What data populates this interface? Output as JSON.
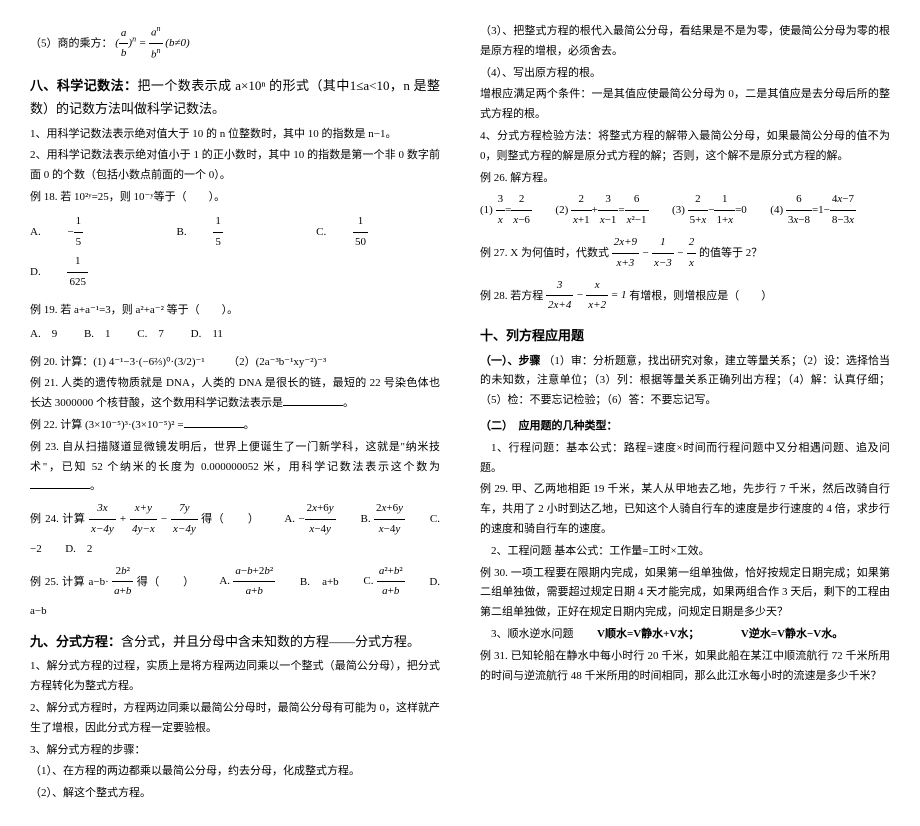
{
  "left": {
    "rule5": "（5）商的乘方：",
    "rule5_formula": "(a/b)ⁿ = aⁿ/bⁿ (b≠0)",
    "sec8_title": "八、科学记数法：",
    "sec8_intro": "把一个数表示成 a×10ⁿ 的形式（其中1≤a<10，n 是整数）的记数方法叫做科学记数法。",
    "sec8_p1": "1、用科学记数法表示绝对值大于 10 的 n 位整数时，其中 10 的指数是 n−1。",
    "sec8_p2": "2、用科学记数法表示绝对值小于 1 的正小数时，其中 10 的指数是第一个非 0 数字前面 0 的个数（包括小数点前面的一个 0）。",
    "ex18": "例 18. 若 10²ʸ=25，则 10⁻ʸ等于（　　）。",
    "ex18_A": "A.",
    "ex18_B": "B.",
    "ex18_C": "C.",
    "ex18_D": "D.",
    "ex19": "例 19. 若 a+a⁻¹=3，则 a²+a⁻² 等于（　　）。",
    "ex19_A": "A.　9",
    "ex19_B": "B.　1",
    "ex19_C": "C.　7",
    "ex19_D": "D.　11",
    "ex20": "例 20. 计算：(1) 4⁻¹−3·(−6⅔)⁰·(3/2)⁻¹",
    "ex20_2": "（2）(2a⁻³b⁻¹xy⁻²)⁻³",
    "ex21": "例 21. 人类的遗传物质就是 DNA，人类的 DNA 是很长的链，最短的 22 号染色体也长达 3000000 个核苷酸，这个数用科学记数法表示是",
    "ex22": "例 22. 计算 (3×10⁻⁵)³·(3×10⁻⁵)² =",
    "ex23": "例 23. 自从扫描隧道显微镜发明后，世界上便诞生了一门新学科，这就是\"纳米技术\"，已知 52 个纳米的长度为 0.000000052 米，用科学记数法表示这个数为",
    "ex24": "例 24. 计算",
    "ex24_tail": "得（　　）",
    "ex24_A": "A.",
    "ex24_B": "B.",
    "ex24_C": "C.　−2",
    "ex24_D": "D.　2",
    "ex25": "例 25. 计算 a−b·",
    "ex25_tail": "得（　　）",
    "ex25_A": "A.",
    "ex25_B": "B.　a+b",
    "ex25_C": "C.",
    "ex25_D": "D.　a−b",
    "sec9_title": "九、分式方程：",
    "sec9_intro": "含分式，并且分母中含未知数的方程——分式方程。",
    "sec9_p1": "1、解分式方程的过程，实质上是将方程两边同乘以一个整式（最简公分母），把分式方程转化为整式方程。",
    "sec9_p2": "2、解分式方程时，方程两边同乘以最简公分母时，最简公分母有可能为 0，这样就产生了增根，因此分式方程一定要验根。",
    "sec9_p3": "3、解分式方程的步骤：",
    "sec9_p3a": "（1）、在方程的两边都乘以最简公分母，约去分母，化成整式方程。",
    "sec9_p3b": "（2）、解这个整式方程。"
  },
  "right": {
    "sec9_p3c": "（3）、把整式方程的根代入最简公分母，看结果是不是为零，使最简公分母为零的根是原方程的增根，必须舍去。",
    "sec9_p3d": "（4）、写出原方程的根。",
    "sec9_note": "增根应满足两个条件：一是其值应使最简公分母为 0，二是其值应是去分母后所的整式方程的根。",
    "sec9_p4": "4、分式方程检验方法：将整式方程的解带入最简公分母，如果最简公分母的值不为 0，则整式方程的解是原分式方程的解；否则，这个解不是原分式方程的解。",
    "ex26": "例 26. 解方程。",
    "ex26_1": "(1)",
    "ex26_2": "(2)",
    "ex26_3": "(3)",
    "ex26_4": "(4)",
    "ex27": "例 27. X 为何值时，代数式",
    "ex27_tail": "的值等于 2？",
    "ex28": "例 28. 若方程",
    "ex28_tail": "有增根，则增根应是（　　）",
    "sec10_title": "十、列方程应用题",
    "sec10_sub1": "（一）、步骤",
    "sec10_sub1_text": "（1）审：分析题意，找出研究对象，建立等量关系；（2）设：选择恰当的未知数，注意单位；（3）列：根据等量关系正确列出方程；（4）解：认真仔细；（5）检：不要忘记检验；（6）答：不要忘记写。",
    "sec10_sub2": "（二）　应用题的几种类型：",
    "type1": "1、行程问题：基本公式：路程=速度×时间而行程问题中又分相遇问题、追及问题。",
    "ex29": "例 29. 甲、乙两地相距 19 千米，某人从甲地去乙地，先步行 7 千米，然后改骑自行车，共用了 2 小时到达乙地，已知这个人骑自行车的速度是步行速度的 4 倍，求步行的速度和骑自行车的速度。",
    "type2": "2、工程问题 基本公式：工作量=工时×工效。",
    "ex30": "例 30. 一项工程要在限期内完成，如果第一组单独做，恰好按规定日期完成；如果第二组单独做，需要超过规定日期 4 天才能完成，如果两组合作 3 天后，剩下的工程由第二组单独做，正好在规定日期内完成，问规定日期是多少天？",
    "type3": "3、顺水逆水问题",
    "type3_f1": "V顺水=V静水+V水；",
    "type3_f2": "V逆水=V静水−V水。",
    "ex31": "例 31. 已知轮船在静水中每小时行 20 千米，如果此船在某江中顺流航行 72 千米所用的时间与逆流航行 48 千米所用的时间相同，那么此江水每小时的流速是多少千米？"
  }
}
